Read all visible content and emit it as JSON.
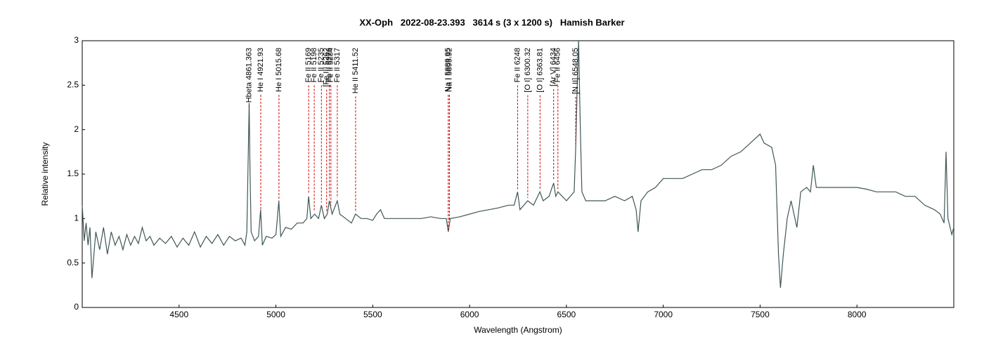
{
  "chart_data": {
    "type": "line",
    "title": "XX-Oph   2022-08-23.393   3614 s (3 x 1200 s)   Hamish Barker",
    "x_label": "Wavelength (Angstrom)",
    "y_label": "Relative intensity",
    "xlim": [
      4000,
      8500
    ],
    "xticks": [
      4500,
      5000,
      5500,
      6000,
      6500,
      7000,
      7500,
      8000
    ],
    "ylim": [
      0,
      3
    ],
    "yticks": [
      0,
      0.5,
      1,
      1.5,
      2,
      2.5,
      3
    ],
    "series": [
      {
        "color": "#405656",
        "x": [
          4000,
          4010,
          4020,
          4030,
          4040,
          4050,
          4070,
          4090,
          4110,
          4130,
          4150,
          4170,
          4190,
          4210,
          4230,
          4250,
          4270,
          4290,
          4310,
          4330,
          4350,
          4370,
          4400,
          4430,
          4460,
          4490,
          4520,
          4550,
          4580,
          4610,
          4640,
          4670,
          4700,
          4730,
          4760,
          4790,
          4820,
          4840,
          4850,
          4858,
          4862,
          4866,
          4872,
          4890,
          4910,
          4921,
          4930,
          4950,
          4980,
          5000,
          5015,
          5025,
          5050,
          5080,
          5110,
          5140,
          5160,
          5169,
          5180,
          5200,
          5220,
          5235,
          5250,
          5265,
          5276,
          5290,
          5317,
          5330,
          5360,
          5390,
          5411,
          5440,
          5470,
          5500,
          5520,
          5540,
          5560,
          5600,
          5650,
          5700,
          5750,
          5800,
          5850,
          5880,
          5890,
          5900,
          5950,
          6000,
          6050,
          6100,
          6150,
          6200,
          6230,
          6248,
          6260,
          6300,
          6330,
          6363,
          6380,
          6410,
          6434,
          6445,
          6456,
          6500,
          6540,
          6548,
          6556,
          6563,
          6572,
          6580,
          6600,
          6650,
          6700,
          6750,
          6800,
          6840,
          6860,
          6870,
          6885,
          6920,
          6960,
          7000,
          7050,
          7100,
          7150,
          7200,
          7250,
          7300,
          7350,
          7400,
          7450,
          7500,
          7520,
          7560,
          7580,
          7595,
          7605,
          7620,
          7640,
          7660,
          7690,
          7710,
          7740,
          7760,
          7775,
          7790,
          7830,
          7900,
          7950,
          8000,
          8050,
          8100,
          8150,
          8200,
          8250,
          8300,
          8350,
          8400,
          8430,
          8450,
          8460,
          8470,
          8490,
          8500
        ],
        "values": [
          1.15,
          0.75,
          0.95,
          0.7,
          0.9,
          0.33,
          0.85,
          0.65,
          0.9,
          0.6,
          0.85,
          0.7,
          0.8,
          0.65,
          0.82,
          0.7,
          0.8,
          0.72,
          0.9,
          0.75,
          0.8,
          0.7,
          0.78,
          0.72,
          0.8,
          0.68,
          0.78,
          0.7,
          0.85,
          0.68,
          0.8,
          0.72,
          0.82,
          0.7,
          0.8,
          0.75,
          0.78,
          0.7,
          0.85,
          1.8,
          2.3,
          1.6,
          0.85,
          0.75,
          0.8,
          1.1,
          0.7,
          0.8,
          0.78,
          0.82,
          1.2,
          0.8,
          0.9,
          0.88,
          0.95,
          0.95,
          1.0,
          1.25,
          1.0,
          1.05,
          1.0,
          1.15,
          1.0,
          1.05,
          1.2,
          1.05,
          1.2,
          1.05,
          1.0,
          0.95,
          1.05,
          1.0,
          1.0,
          0.98,
          1.05,
          1.1,
          1.0,
          1.0,
          1.0,
          1.0,
          1.0,
          1.02,
          1.0,
          1.0,
          0.85,
          1.0,
          1.02,
          1.05,
          1.08,
          1.1,
          1.12,
          1.15,
          1.15,
          1.3,
          1.1,
          1.2,
          1.15,
          1.3,
          1.2,
          1.25,
          1.4,
          1.25,
          1.3,
          1.2,
          1.3,
          1.8,
          2.5,
          3.0,
          2.0,
          1.3,
          1.2,
          1.2,
          1.2,
          1.25,
          1.2,
          1.25,
          1.1,
          0.85,
          1.2,
          1.3,
          1.35,
          1.45,
          1.45,
          1.45,
          1.5,
          1.55,
          1.55,
          1.6,
          1.7,
          1.75,
          1.85,
          1.95,
          1.85,
          1.8,
          1.6,
          0.6,
          0.22,
          0.6,
          1.0,
          1.2,
          0.9,
          1.3,
          1.35,
          1.3,
          1.6,
          1.35,
          1.35,
          1.35,
          1.35,
          1.35,
          1.33,
          1.3,
          1.3,
          1.3,
          1.25,
          1.25,
          1.15,
          1.1,
          1.05,
          0.95,
          1.75,
          1.0,
          0.82,
          0.9
        ]
      }
    ],
    "lines": [
      {
        "label": "Hbeta 4861.363",
        "wavelength": 4861.363
      },
      {
        "label": "He I 4921.93",
        "wavelength": 4921.93
      },
      {
        "label": "He I 5015.68",
        "wavelength": 5015.68
      },
      {
        "label": "Fe II 5169",
        "wavelength": 5169
      },
      {
        "label": "Fe II 5198",
        "wavelength": 5198
      },
      {
        "label": "Fe II 5235",
        "wavelength": 5235
      },
      {
        "label": "[Fe II] 5262",
        "wavelength": 5262
      },
      {
        "label": "Fe II 5276",
        "wavelength": 5276
      },
      {
        "label": "Fe II 5284",
        "wavelength": 5284
      },
      {
        "label": "Fe II 5317",
        "wavelength": 5317
      },
      {
        "label": "He II 5411.52",
        "wavelength": 5411.52
      },
      {
        "label": "Na I 5889.95",
        "wavelength": 5889.95
      },
      {
        "label": "Na I 5895.92",
        "wavelength": 5895.92
      },
      {
        "label": "Fe II 6248",
        "wavelength": 6248
      },
      {
        "label": "[O I] 6300.32",
        "wavelength": 6300.32
      },
      {
        "label": "[O I] 6363.81",
        "wavelength": 6363.81
      },
      {
        "label": "[Ar V] 6434",
        "wavelength": 6434
      },
      {
        "label": "Fe II 6456",
        "wavelength": 6456
      },
      {
        "label": "[N II] 6548.05",
        "wavelength": 6548.05
      }
    ]
  }
}
